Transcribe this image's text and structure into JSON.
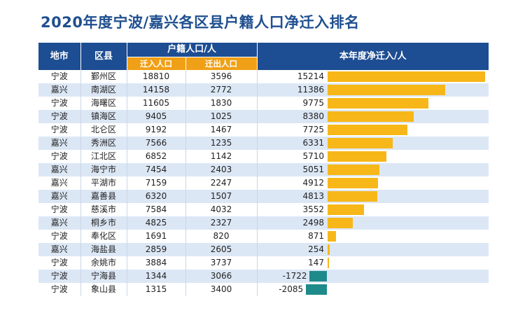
{
  "title": "2020年度宁波/嘉兴各区县户籍人口净迁入排名",
  "chart_data": {
    "type": "bar",
    "title": "2020年度宁波/嘉兴各区县户籍人口净迁入排名",
    "headers": {
      "city": "地市",
      "district": "区县",
      "registered": "户籍人口/人",
      "in": "迁入人口",
      "out": "迁出人口",
      "net": "本年度净迁入/人"
    },
    "xlim": [
      -2085,
      15214
    ],
    "rows": [
      {
        "city": "宁波",
        "district": "鄞州区",
        "in": "18810",
        "out": "3596",
        "net": 15214
      },
      {
        "city": "嘉兴",
        "district": "南湖区",
        "in": "14158",
        "out": "2772",
        "net": 11386
      },
      {
        "city": "宁波",
        "district": "海曙区",
        "in": "11605",
        "out": "1830",
        "net": 9775
      },
      {
        "city": "宁波",
        "district": "镇海区",
        "in": "9405",
        "out": "1025",
        "net": 8380
      },
      {
        "city": "宁波",
        "district": "北仑区",
        "in": "9192",
        "out": "1467",
        "net": 7725
      },
      {
        "city": "嘉兴",
        "district": "秀洲区",
        "in": "7566",
        "out": "1235",
        "net": 6331
      },
      {
        "city": "宁波",
        "district": "江北区",
        "in": "6852",
        "out": "1142",
        "net": 5710
      },
      {
        "city": "嘉兴",
        "district": "海宁市",
        "in": "7454",
        "out": "2403",
        "net": 5051
      },
      {
        "city": "嘉兴",
        "district": "平湖市",
        "in": "7159",
        "out": "2247",
        "net": 4912
      },
      {
        "city": "嘉兴",
        "district": "嘉善县",
        "in": "6320",
        "out": "1507",
        "net": 4813
      },
      {
        "city": "宁波",
        "district": "慈溪市",
        "in": "7584",
        "out": "4032",
        "net": 3552
      },
      {
        "city": "嘉兴",
        "district": "桐乡市",
        "in": "4825",
        "out": "2327",
        "net": 2498
      },
      {
        "city": "宁波",
        "district": "奉化区",
        "in": "1691",
        "out": "820",
        "net": 871
      },
      {
        "city": "嘉兴",
        "district": "海盐县",
        "in": "2859",
        "out": "2605",
        "net": 254
      },
      {
        "city": "宁波",
        "district": "余姚市",
        "in": "3884",
        "out": "3737",
        "net": 147
      },
      {
        "city": "宁波",
        "district": "宁海县",
        "in": "1344",
        "out": "3066",
        "net": -1722
      },
      {
        "city": "宁波",
        "district": "象山县",
        "in": "1315",
        "out": "3400",
        "net": -2085
      }
    ],
    "colors": {
      "positive": "#f7b719",
      "negative": "#1f8a8a",
      "header": "#1d4d92",
      "subheader": "#f0a017",
      "stripe": "#dce7f5"
    }
  }
}
